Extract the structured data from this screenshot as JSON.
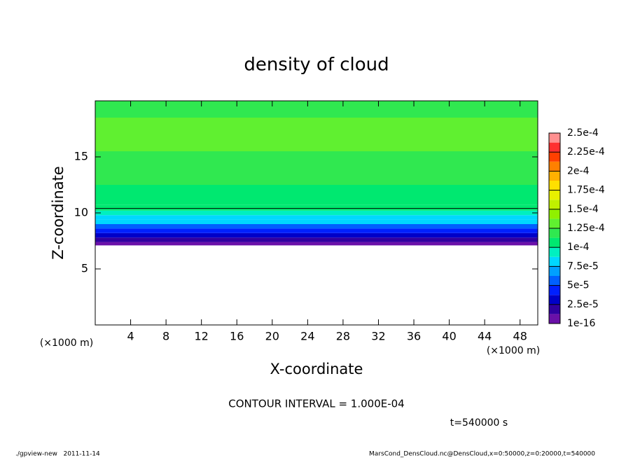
{
  "chart_data": {
    "type": "contour",
    "title": "density of cloud",
    "x_label": "X-coordinate",
    "y_label": "Z-coordinate",
    "x_unit_label": "(×1000 m)",
    "xlim": [
      0,
      50
    ],
    "ylim": [
      0,
      20
    ],
    "xticks": [
      4,
      8,
      12,
      16,
      20,
      24,
      28,
      32,
      36,
      40,
      44,
      48
    ],
    "yticks": [
      5,
      10,
      15
    ],
    "profile": {
      "z": [
        0,
        7.0,
        7.2,
        7.6,
        8.0,
        8.4,
        8.8,
        9.2,
        9.6,
        10.0,
        10.4,
        11,
        12,
        13,
        14,
        15,
        16,
        17,
        18,
        19,
        20
      ],
      "values": [
        0,
        0,
        5e-06,
        1.5e-05,
        3e-05,
        4.5e-05,
        6e-05,
        7.5e-05,
        8.5e-05,
        9.5e-05,
        0.0001,
        0.000108,
        0.000112,
        0.000115,
        0.00012,
        0.000122,
        0.000128,
        0.00013,
        0.000128,
        0.00012,
        0.000115
      ]
    },
    "contour_levels": [
      0.0001
    ],
    "colorbar_ticks": [
      {
        "value": 1e-16,
        "label": "1e-16"
      },
      {
        "value": 2.5e-05,
        "label": "2.5e-5"
      },
      {
        "value": 5e-05,
        "label": "5e-5"
      },
      {
        "value": 7.5e-05,
        "label": "7.5e-5"
      },
      {
        "value": 0.0001,
        "label": "1e-4"
      },
      {
        "value": 0.000125,
        "label": "1.25e-4"
      },
      {
        "value": 0.00015,
        "label": "1.5e-4"
      },
      {
        "value": 0.000175,
        "label": "1.75e-4"
      },
      {
        "value": 0.0002,
        "label": "2e-4"
      },
      {
        "value": 0.000225,
        "label": "2.25e-4"
      },
      {
        "value": 0.00025,
        "label": "2.5e-4"
      }
    ],
    "colors": [
      "#6a10a8",
      "#3000a0",
      "#0000c8",
      "#0020ff",
      "#0060ff",
      "#00a0ff",
      "#00d8ff",
      "#00f0c0",
      "#00e870",
      "#30e850",
      "#60f030",
      "#90f000",
      "#c0f000",
      "#e8f000",
      "#ffe000",
      "#ffb000",
      "#ff8000",
      "#ff4000",
      "#ff3030",
      "#ff9090"
    ],
    "contour_interval_text": "CONTOUR INTERVAL = 1.000E-04",
    "time_text": "t=540000 s",
    "footer_left": "./gpview-new   2011-11-14",
    "footer_right": "MarsCond_DensCloud.nc@DensCloud,x=0:50000,z=0:20000,t=540000"
  }
}
